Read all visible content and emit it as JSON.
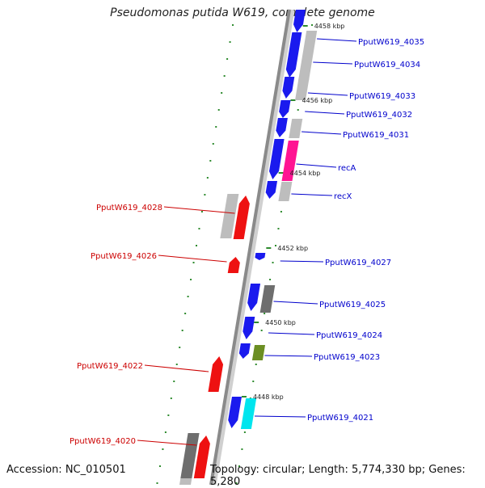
{
  "title": "Pseudomonas putida W619, complete genome",
  "footer": {
    "accession": "Accession: NC_010501",
    "topology": "Topology: circular; Length: 5,774,330 bp; Genes: 5,280"
  },
  "colors": {
    "backbone": "#8a8a8a",
    "tick": "#2e8b2e",
    "forward_label": "#0000cc",
    "reverse_label": "#cc0000",
    "blue": "#1a1aee",
    "gray": "#bdbdbd",
    "darkgray": "#6e6e6e",
    "red": "#ee1111",
    "magenta": "#ff1493",
    "olive": "#6b8e23",
    "cyan": "#00e5ee"
  },
  "kbp_labels": [
    "4458 kbp",
    "4456 kbp",
    "4454 kbp",
    "4452 kbp",
    "4450 kbp",
    "4448 kbp"
  ],
  "forward_genes": [
    {
      "name": "PputW619_4035",
      "color": "blue"
    },
    {
      "name": "PputW619_4034",
      "color": "blue"
    },
    {
      "name": "PputW619_4033",
      "color": "gray"
    },
    {
      "name": "PputW619_4032",
      "color": "blue"
    },
    {
      "name": "PputW619_4031",
      "color": "gray"
    },
    {
      "name": "recA",
      "color": "magenta"
    },
    {
      "name": "recX",
      "color": "gray"
    },
    {
      "name": "PputW619_4027",
      "color": "blue"
    },
    {
      "name": "PputW619_4025",
      "color": "darkgray"
    },
    {
      "name": "PputW619_4024",
      "color": "blue"
    },
    {
      "name": "PputW619_4023",
      "color": "olive"
    },
    {
      "name": "PputW619_4021",
      "color": "cyan"
    }
  ],
  "reverse_genes": [
    {
      "name": "PputW619_4028",
      "color": "red"
    },
    {
      "name": "PputW619_4026",
      "color": "red"
    },
    {
      "name": "PputW619_4022",
      "color": "red"
    },
    {
      "name": "PputW619_4020",
      "color": "red"
    }
  ]
}
